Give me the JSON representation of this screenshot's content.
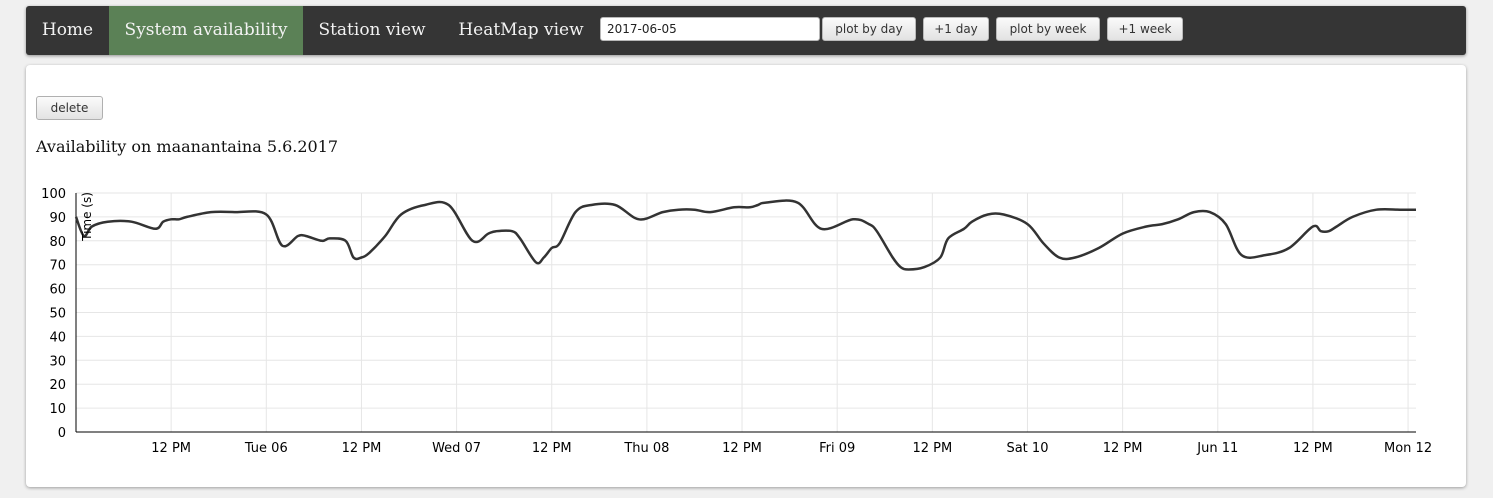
{
  "nav": {
    "items": [
      {
        "label": "Home",
        "active": false
      },
      {
        "label": "System availability",
        "active": true
      },
      {
        "label": "Station view",
        "active": false
      },
      {
        "label": "HeatMap view",
        "active": false
      }
    ],
    "date_value": "2017-06-05",
    "buttons": [
      "plot by day",
      "+1 day",
      "plot by week",
      "+1 week"
    ]
  },
  "panel": {
    "delete_label": "delete",
    "title": "Availability on maanantaina 5.6.2017"
  },
  "colors": {
    "navbar_bg": "#353535",
    "active_tab": "#5b8156",
    "line": "#333333",
    "grid": "#e6e6e6"
  },
  "chart_data": {
    "type": "line",
    "title": "Availability on maanantaina 5.6.2017",
    "ylabel": "Time (s)",
    "xlabel": "",
    "ylim": [
      0,
      100
    ],
    "yticks": [
      0,
      10,
      20,
      30,
      40,
      50,
      60,
      70,
      80,
      90,
      100
    ],
    "xlim": [
      "2017-06-05 00:00",
      "2017-06-12 01:00"
    ],
    "xticks": [
      {
        "t": "2017-06-05 12:00",
        "label": "12 PM"
      },
      {
        "t": "2017-06-06 00:00",
        "label": "Tue 06"
      },
      {
        "t": "2017-06-06 12:00",
        "label": "12 PM"
      },
      {
        "t": "2017-06-07 00:00",
        "label": "Wed 07"
      },
      {
        "t": "2017-06-07 12:00",
        "label": "12 PM"
      },
      {
        "t": "2017-06-08 00:00",
        "label": "Thu 08"
      },
      {
        "t": "2017-06-08 12:00",
        "label": "12 PM"
      },
      {
        "t": "2017-06-09 00:00",
        "label": "Fri 09"
      },
      {
        "t": "2017-06-09 12:00",
        "label": "12 PM"
      },
      {
        "t": "2017-06-10 00:00",
        "label": "Sat 10"
      },
      {
        "t": "2017-06-10 12:00",
        "label": "12 PM"
      },
      {
        "t": "2017-06-11 00:00",
        "label": "Jun 11"
      },
      {
        "t": "2017-06-11 12:00",
        "label": "12 PM"
      },
      {
        "t": "2017-06-12 00:00",
        "label": "Mon 12"
      }
    ],
    "grid": true,
    "series": [
      {
        "x": [
          "2017-06-05 00:00",
          "2017-06-05 01:00",
          "2017-06-05 02:00",
          "2017-06-05 04:00",
          "2017-06-05 07:00",
          "2017-06-05 10:00",
          "2017-06-05 11:00",
          "2017-06-05 12:00",
          "2017-06-05 13:00",
          "2017-06-05 14:00",
          "2017-06-05 17:00",
          "2017-06-05 20:00",
          "2017-06-06 00:00",
          "2017-06-06 02:00",
          "2017-06-06 04:00",
          "2017-06-06 05:00",
          "2017-06-06 07:00",
          "2017-06-06 08:00",
          "2017-06-06 10:00",
          "2017-06-06 11:00",
          "2017-06-06 12:00",
          "2017-06-06 13:00",
          "2017-06-06 15:00",
          "2017-06-06 17:00",
          "2017-06-06 20:00",
          "2017-06-06 23:00",
          "2017-06-07 02:00",
          "2017-06-07 04:00",
          "2017-06-07 05:00",
          "2017-06-07 07:00",
          "2017-06-07 08:00",
          "2017-06-07 10:00",
          "2017-06-07 11:00",
          "2017-06-07 12:00",
          "2017-06-07 13:00",
          "2017-06-07 15:00",
          "2017-06-07 17:00",
          "2017-06-07 20:00",
          "2017-06-07 23:00",
          "2017-06-08 02:00",
          "2017-06-08 04:00",
          "2017-06-08 06:00",
          "2017-06-08 08:00",
          "2017-06-08 11:00",
          "2017-06-08 13:00",
          "2017-06-08 14:00",
          "2017-06-08 15:00",
          "2017-06-08 19:00",
          "2017-06-08 22:00",
          "2017-06-09 02:00",
          "2017-06-09 04:00",
          "2017-06-09 05:00",
          "2017-06-09 07:00",
          "2017-06-09 08:00",
          "2017-06-09 09:00",
          "2017-06-09 11:00",
          "2017-06-09 13:00",
          "2017-06-09 14:00",
          "2017-06-09 16:00",
          "2017-06-09 17:00",
          "2017-06-09 19:00",
          "2017-06-09 21:00",
          "2017-06-10 00:00",
          "2017-06-10 02:00",
          "2017-06-10 04:00",
          "2017-06-10 06:00",
          "2017-06-10 09:00",
          "2017-06-10 12:00",
          "2017-06-10 15:00",
          "2017-06-10 17:00",
          "2017-06-10 19:00",
          "2017-06-10 21:00",
          "2017-06-10 23:00",
          "2017-06-11 01:00",
          "2017-06-11 03:00",
          "2017-06-11 06:00",
          "2017-06-11 09:00",
          "2017-06-11 12:00",
          "2017-06-11 13:00",
          "2017-06-11 14:00",
          "2017-06-11 15:00",
          "2017-06-11 17:00",
          "2017-06-11 20:00",
          "2017-06-11 23:00",
          "2017-06-12 01:00"
        ],
        "y": [
          90,
          82,
          86,
          88,
          88,
          85,
          88,
          89,
          89,
          90,
          92,
          92,
          91,
          78,
          82,
          82,
          80,
          81,
          80,
          73,
          73,
          75,
          82,
          91,
          95,
          95,
          80,
          83,
          84,
          84,
          81,
          71,
          73,
          77,
          79,
          92,
          95,
          95,
          89,
          92,
          93,
          93,
          92,
          94,
          94,
          95,
          96,
          96,
          85,
          89,
          87,
          84,
          73,
          69,
          68,
          69,
          73,
          81,
          85,
          88,
          91,
          91,
          87,
          79,
          73,
          73,
          77,
          83,
          86,
          87,
          89,
          92,
          92,
          87,
          74,
          74,
          77,
          86,
          84,
          84,
          86,
          90,
          93,
          93,
          93
        ]
      }
    ]
  }
}
